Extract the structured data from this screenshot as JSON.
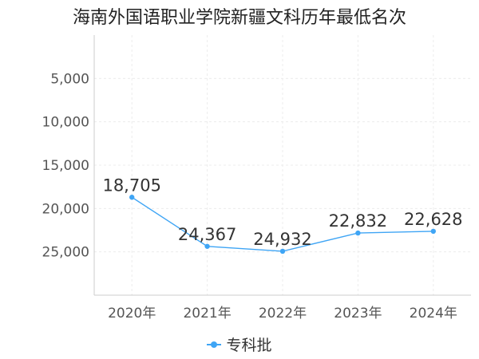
{
  "chart_data": {
    "type": "line",
    "title": "海南外国语职业学院新疆文科历年最低名次",
    "categories": [
      "2020年",
      "2021年",
      "2022年",
      "2023年",
      "2024年"
    ],
    "series": [
      {
        "name": "专科批",
        "values": [
          18705,
          24367,
          24932,
          22832,
          22628
        ],
        "color": "#3fa5f5"
      }
    ],
    "y_ticks": [
      5000,
      10000,
      15000,
      20000,
      25000
    ],
    "y_tick_labels": [
      "5,000",
      "10,000",
      "15,000",
      "20,000",
      "25,000"
    ],
    "data_labels": [
      "18,705",
      "24,367",
      "24,932",
      "22,832",
      "22,628"
    ],
    "ylim": [
      0,
      30000
    ],
    "y_reversed": true,
    "grid": true,
    "legend_position": "bottom-center",
    "xlabel": "",
    "ylabel": ""
  }
}
